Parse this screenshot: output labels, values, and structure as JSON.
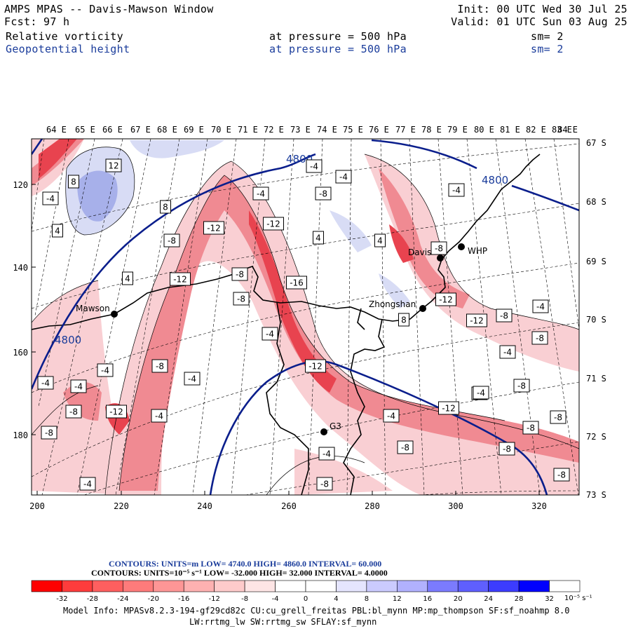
{
  "header": {
    "title": "AMPS MPAS -- Davis-Mawson Window",
    "fcst": "Fcst:   97 h",
    "init": "Init: 00 UTC Wed 30 Jul 25",
    "valid": "Valid: 01 UTC Sun 03 Aug 25",
    "field1_name": "Relative vorticity",
    "field1_level": "at pressure =  500 hPa",
    "field1_sm": "sm= 2",
    "field2_name": "Geopotential height",
    "field2_level": "at pressure =  500 hPa",
    "field2_sm": "sm= 2"
  },
  "map": {
    "top_longitudes": [
      "64 E",
      "65 E",
      "66 E",
      "67 E",
      "68 E",
      "69 E",
      "70 E",
      "71 E",
      "72 E",
      "73 E",
      "74 E",
      "75 E",
      "76 E",
      "77 E",
      "78 E",
      "79 E",
      "80 E",
      "81 E",
      "82 E",
      "83 E",
      "84 E"
    ],
    "right_latitudes": [
      "67 S",
      "68 S",
      "69 S",
      "70 S",
      "71 S",
      "72 S",
      "73 S"
    ],
    "left_ticks": [
      "120",
      "140",
      "160",
      "180"
    ],
    "bottom_ticks": [
      "200",
      "220",
      "240",
      "260",
      "280",
      "300",
      "320"
    ],
    "stations": [
      {
        "name": "Mawson"
      },
      {
        "name": "Davis"
      },
      {
        "name": "WHP"
      },
      {
        "name": "Zhongshan"
      },
      {
        "name": "G3"
      }
    ],
    "height_labels": [
      "4800",
      "4800",
      "4800"
    ],
    "vorticity_labels": [
      "-4",
      "8",
      "12",
      "-4",
      "4",
      "8",
      "-8",
      "4",
      "-12",
      "-4",
      "-12",
      "4",
      "-8",
      "-12",
      "-8",
      "-16",
      "-12",
      "-4",
      "-4",
      "-8",
      "4",
      "-4",
      "-8",
      "-12",
      "-4",
      "-8",
      "-12",
      "-8",
      "-4",
      "-4",
      "8",
      "-4",
      "-12",
      "-8",
      "-4",
      "-8",
      "-12",
      "-4",
      "-4",
      "-8",
      "-8",
      "-4",
      "-8",
      "-4",
      "-8",
      "-8",
      "-8",
      "-4",
      "-8",
      "-8",
      "-4",
      "-4"
    ],
    "colors": {
      "coast": "#000000",
      "height_contour": "#0a1e8c",
      "neg_strong": "#e8434f",
      "neg_mid": "#f08a92",
      "neg_light": "#f9cfd3",
      "pos_light": "#d8dcf5",
      "pos_mid": "#a7b0ea"
    }
  },
  "legend": {
    "line1": "CONTOURS:  UNITS=m  LOW=  4740.0        HIGH=  4860.0        INTERVAL=   60.000",
    "line2": "CONTOURS:  UNITS=10⁻⁵ s⁻¹  LOW=  -32.000        HIGH=  32.000        INTERVAL=   4.0000",
    "colorbar_ticks": [
      "-32",
      "-28",
      "-24",
      "-20",
      "-16",
      "-12",
      "-8",
      "-4",
      "0",
      "4",
      "8",
      "12",
      "16",
      "20",
      "24",
      "28",
      "32"
    ],
    "colorbar_unit": "10⁻⁵ s⁻¹",
    "colorbar_colors": [
      "#fe0000",
      "#fe3c3c",
      "#fe5f5f",
      "#fe7b7b",
      "#fe9696",
      "#feb1b1",
      "#fecbcb",
      "#fee5e5",
      "#ffffff",
      "#ffffff",
      "#e5e5fe",
      "#cbcbfe",
      "#b1b1fe",
      "#7b7bfe",
      "#5f5ffe",
      "#3c3cfe",
      "#0000fe"
    ]
  },
  "footer": {
    "line1": "Model Info: MPASv8.2.3-194-gf29cd82c CU:cu_grell_freitas PBL:bl_mynn MP:mp_thompson SF:sf_noahmp 8.0",
    "line2": "LW:rrtmg_lw SW:rrtmg_sw SFLAY:sf_mynn"
  }
}
